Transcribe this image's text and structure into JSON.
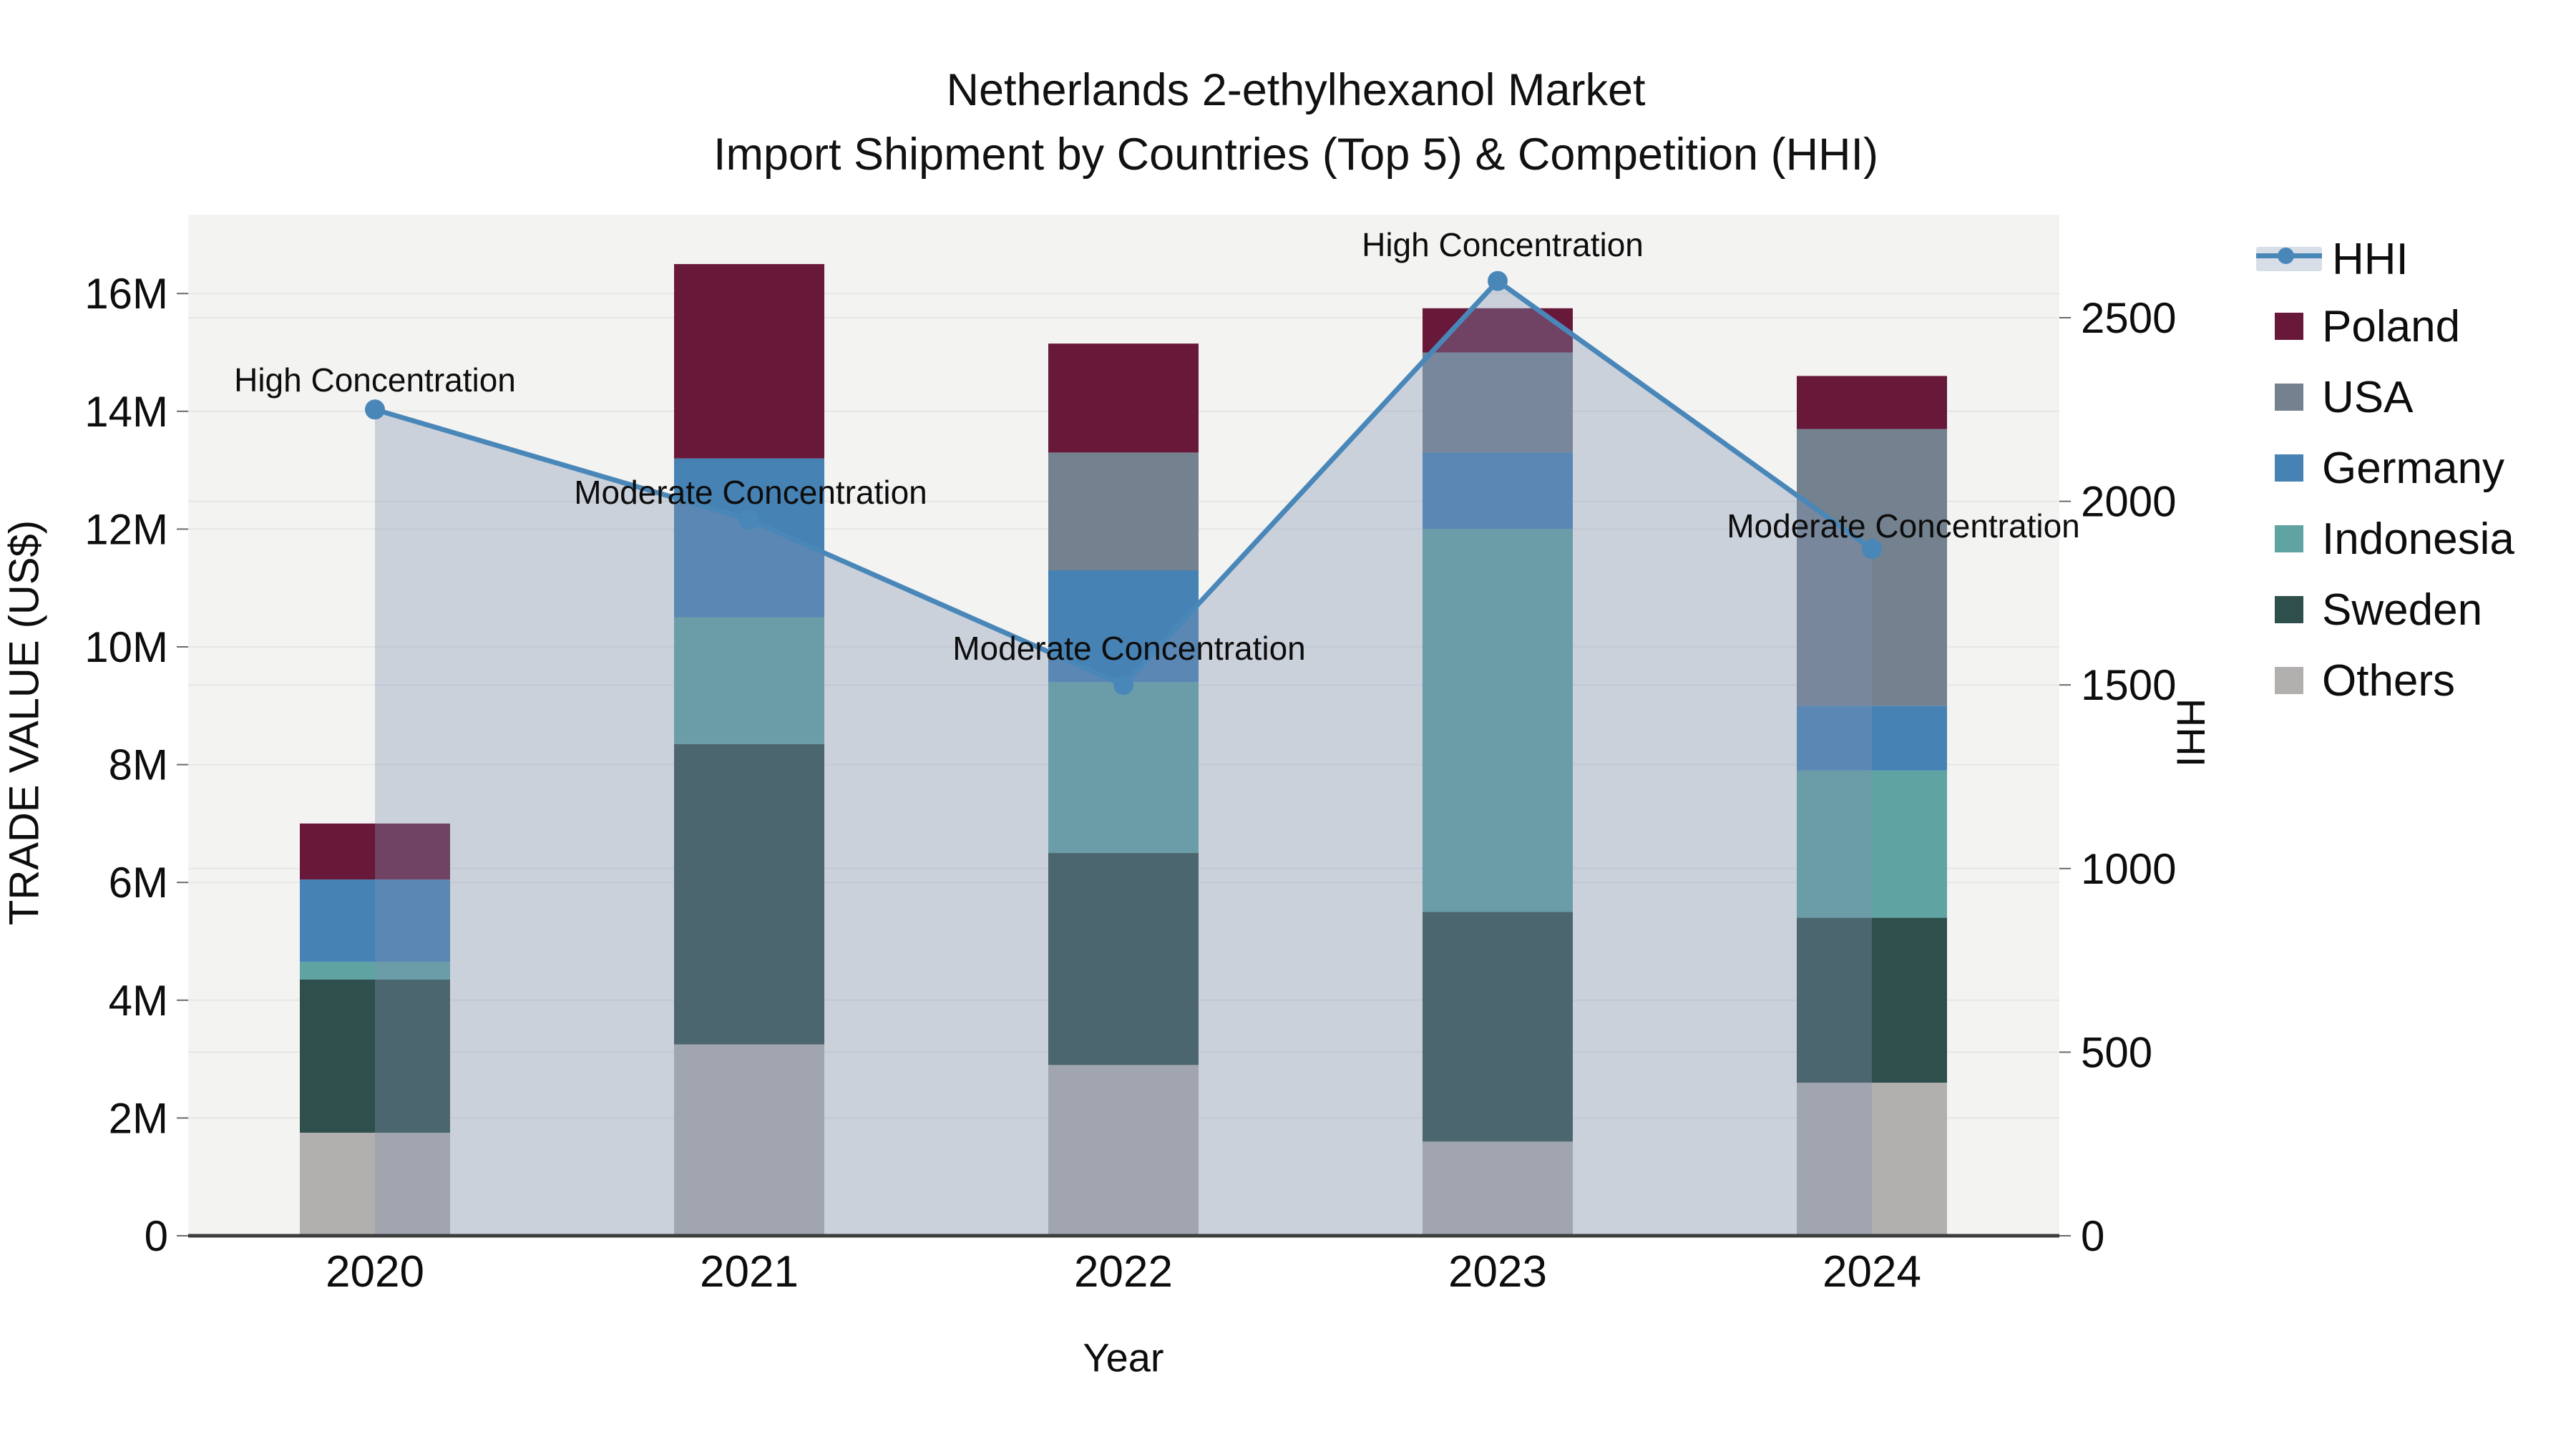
{
  "title": {
    "line1": "Netherlands 2-ethylhexanol Market",
    "line2": "Import Shipment by Countries (Top 5) & Competition (HHI)"
  },
  "axes": {
    "x_title": "Year",
    "y_left_title": "TRADE VALUE (US$)",
    "y_right_title": "HHI",
    "x_tick_labels": [
      "2020",
      "2021",
      "2022",
      "2023",
      "2024"
    ],
    "y_left_tick_labels": [
      "0",
      "2M",
      "4M",
      "6M",
      "8M",
      "10M",
      "12M",
      "14M",
      "16M"
    ],
    "y_right_tick_labels": [
      "0",
      "500",
      "1000",
      "1500",
      "2000",
      "2500"
    ]
  },
  "legend": {
    "items": [
      {
        "label": "HHI",
        "kind": "line",
        "color": "#4a87b9"
      },
      {
        "label": "Poland",
        "kind": "bar",
        "color": "#681839"
      },
      {
        "label": "USA",
        "kind": "bar",
        "color": "#74828f"
      },
      {
        "label": "Germany",
        "kind": "bar",
        "color": "#4682b4"
      },
      {
        "label": "Indonesia",
        "kind": "bar",
        "color": "#5fa4a3"
      },
      {
        "label": "Sweden",
        "kind": "bar",
        "color": "#2e4f4b"
      },
      {
        "label": "Others",
        "kind": "bar",
        "color": "#b1b0ae"
      }
    ]
  },
  "annotations": [
    {
      "year": "2020",
      "text": "High Concentration"
    },
    {
      "year": "2021",
      "text": "Moderate Concentration"
    },
    {
      "year": "2022",
      "text": "Moderate Concentration"
    },
    {
      "year": "2023",
      "text": "High Concentration"
    },
    {
      "year": "2024",
      "text": "Moderate Concentration"
    }
  ],
  "chart_data": {
    "type": "bar",
    "subtype": "stacked bars with overlaid line (secondary axis)",
    "title": "Netherlands 2-ethylhexanol Market — Import Shipment by Countries (Top 5) & Competition (HHI)",
    "xlabel": "Year",
    "ylabel_left": "TRADE VALUE (US$)",
    "ylabel_right": "HHI",
    "categories": [
      "2020",
      "2021",
      "2022",
      "2023",
      "2024"
    ],
    "bar_value_unit": "million US$",
    "stack_order_bottom_to_top": [
      "Others",
      "Sweden",
      "Indonesia",
      "Germany",
      "USA",
      "Poland"
    ],
    "series": [
      {
        "name": "Poland",
        "color": "#681839",
        "values": [
          0.95,
          3.3,
          1.85,
          0.75,
          0.9
        ]
      },
      {
        "name": "USA",
        "color": "#74828f",
        "values": [
          0.0,
          0.0,
          2.0,
          1.7,
          4.7
        ]
      },
      {
        "name": "Germany",
        "color": "#4682b4",
        "values": [
          1.4,
          2.7,
          1.9,
          1.3,
          1.1
        ]
      },
      {
        "name": "Indonesia",
        "color": "#5fa4a3",
        "values": [
          0.3,
          2.15,
          2.9,
          6.5,
          2.5
        ]
      },
      {
        "name": "Sweden",
        "color": "#2e4f4b",
        "values": [
          2.6,
          5.1,
          3.6,
          3.9,
          2.8
        ]
      },
      {
        "name": "Others",
        "color": "#b1b0ae",
        "values": [
          1.75,
          3.25,
          2.9,
          1.6,
          2.6
        ]
      }
    ],
    "bar_totals": [
      7.0,
      16.5,
      15.15,
      15.75,
      14.6
    ],
    "line_series": {
      "name": "HHI",
      "color": "#4a87b9",
      "area_fill": "rgba(128,146,178,0.35)",
      "values": [
        2250,
        1950,
        1500,
        2600,
        1870
      ]
    },
    "ylim_left": [
      0,
      17.4
    ],
    "ylim_right": [
      0,
      2660
    ],
    "y_left_ticks": [
      0,
      2,
      4,
      6,
      8,
      10,
      12,
      14,
      16
    ],
    "y_right_ticks": [
      0,
      500,
      1000,
      1500,
      2000,
      2500
    ],
    "grid": true,
    "plot_background": "#f3f3f2",
    "gridline_color": "#e6e6e5",
    "legend_position": "right"
  }
}
